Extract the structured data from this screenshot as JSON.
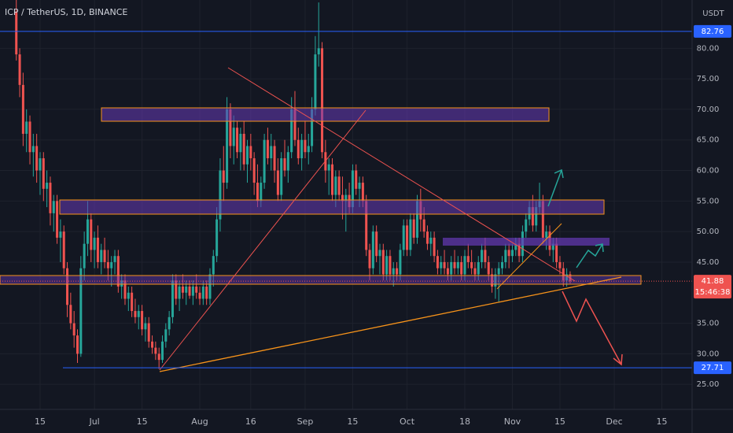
{
  "chart_data": {
    "type": "candlestick",
    "title": "ICP / TetherUS, 1D, BINANCE",
    "currency": "USDT",
    "up_color": "#26a69a",
    "down_color": "#ef5350",
    "grid": true,
    "xlim": [
      154.2,
      357.9
    ],
    "ylim": [
      20.9,
      87.9
    ],
    "xticks": [
      {
        "value": 166,
        "label": "15"
      },
      {
        "value": 182,
        "label": "Jul"
      },
      {
        "value": 196,
        "label": "15"
      },
      {
        "value": 213,
        "label": "Aug"
      },
      {
        "value": 228,
        "label": "16"
      },
      {
        "value": 244,
        "label": "Sep"
      },
      {
        "value": 258,
        "label": "15"
      },
      {
        "value": 274,
        "label": "Oct"
      },
      {
        "value": 291,
        "label": "18"
      },
      {
        "value": 305,
        "label": "Nov"
      },
      {
        "value": 319,
        "label": "15"
      },
      {
        "value": 335,
        "label": "Dec"
      },
      {
        "value": 349,
        "label": "15"
      }
    ],
    "yticks": [
      {
        "value": 25,
        "label": "25.00"
      },
      {
        "value": 30,
        "label": "30.00"
      },
      {
        "value": 35,
        "label": "35.00"
      },
      {
        "value": 45,
        "label": "45.00"
      },
      {
        "value": 50,
        "label": "50.00"
      },
      {
        "value": 55,
        "label": "55.00"
      },
      {
        "value": 60,
        "label": "60.00"
      },
      {
        "value": 65,
        "label": "65.00"
      },
      {
        "value": 70,
        "label": "70.00"
      },
      {
        "value": 75,
        "label": "75.00"
      },
      {
        "value": 80,
        "label": "80.00"
      }
    ],
    "price_lines": [
      {
        "value": 82.76,
        "color": "#2962ff"
      },
      {
        "value": 27.71,
        "color": "#2962ff"
      }
    ],
    "last_price": 41.88,
    "countdown": "15:46:38",
    "x": [
      159,
      160,
      161,
      162,
      163,
      164,
      165,
      166,
      167,
      168,
      169,
      170,
      171,
      172,
      173,
      174,
      175,
      176,
      177,
      178,
      179,
      180,
      181,
      182,
      183,
      184,
      185,
      186,
      187,
      188,
      189,
      190,
      191,
      192,
      193,
      194,
      195,
      196,
      197,
      198,
      199,
      200,
      201,
      202,
      203,
      204,
      205,
      206,
      207,
      208,
      209,
      210,
      211,
      212,
      213,
      214,
      215,
      216,
      217,
      218,
      219,
      220,
      221,
      222,
      223,
      224,
      225,
      226,
      227,
      228,
      229,
      230,
      231,
      232,
      233,
      234,
      235,
      236,
      237,
      238,
      239,
      240,
      241,
      242,
      243,
      244,
      245,
      246,
      247,
      248,
      249,
      250,
      251,
      252,
      253,
      254,
      255,
      256,
      257,
      258,
      259,
      260,
      261,
      262,
      263,
      264,
      265,
      266,
      267,
      268,
      269,
      270,
      271,
      272,
      273,
      274,
      275,
      276,
      277,
      278,
      279,
      280,
      281,
      282,
      283,
      284,
      285,
      286,
      287,
      288,
      289,
      290,
      291,
      292,
      293,
      294,
      295,
      296,
      297,
      298,
      299,
      300,
      301,
      302,
      303,
      304,
      305,
      306,
      307,
      308,
      309,
      310,
      311,
      312,
      313,
      314,
      315,
      316,
      317,
      318,
      319,
      320,
      321,
      322
    ],
    "candles": [
      [
        86,
        88,
        78,
        79
      ],
      [
        79,
        80,
        72,
        74
      ],
      [
        74,
        76,
        64,
        66
      ],
      [
        66,
        70,
        63,
        68
      ],
      [
        68,
        69,
        61,
        63
      ],
      [
        63,
        66,
        59,
        64
      ],
      [
        64,
        66,
        58,
        60
      ],
      [
        60,
        63,
        56,
        62
      ],
      [
        62,
        63,
        55,
        57
      ],
      [
        57,
        60,
        54,
        58
      ],
      [
        58,
        59,
        51,
        53
      ],
      [
        53,
        56,
        50,
        55
      ],
      [
        55,
        56,
        48,
        49
      ],
      [
        49,
        52,
        45,
        50
      ],
      [
        50,
        51,
        43,
        44
      ],
      [
        44,
        45,
        36,
        38
      ],
      [
        38,
        40,
        34,
        35
      ],
      [
        35,
        37,
        31,
        33
      ],
      [
        33,
        34,
        28.5,
        30
      ],
      [
        30,
        46,
        29.5,
        44
      ],
      [
        44,
        50,
        42,
        48
      ],
      [
        48,
        55,
        46,
        52
      ],
      [
        52,
        53,
        45,
        47
      ],
      [
        47,
        50,
        44,
        49
      ],
      [
        49,
        51,
        44,
        45
      ],
      [
        45,
        48,
        43,
        47
      ],
      [
        47,
        49,
        44,
        45
      ],
      [
        45,
        47,
        42,
        44
      ],
      [
        44,
        46,
        41,
        45
      ],
      [
        45,
        47,
        43,
        46
      ],
      [
        46,
        47,
        40,
        41
      ],
      [
        41,
        43,
        39,
        42
      ],
      [
        42,
        43,
        38,
        39
      ],
      [
        39,
        41,
        37,
        40
      ],
      [
        40,
        41,
        36,
        37
      ],
      [
        37,
        39,
        35,
        36
      ],
      [
        36,
        38,
        34,
        37
      ],
      [
        37,
        38,
        33,
        34
      ],
      [
        34,
        36,
        32,
        35
      ],
      [
        35,
        36,
        31,
        32
      ],
      [
        32,
        33,
        30,
        31
      ],
      [
        31,
        32,
        29,
        30
      ],
      [
        30,
        31,
        27.5,
        29
      ],
      [
        29,
        33,
        28.5,
        32
      ],
      [
        32,
        35,
        31,
        34
      ],
      [
        34,
        37,
        33,
        36
      ],
      [
        36,
        43,
        35,
        42
      ],
      [
        42,
        43,
        38,
        39
      ],
      [
        39,
        42,
        37,
        41
      ],
      [
        41,
        43,
        39,
        40
      ],
      [
        40,
        42,
        38,
        41
      ],
      [
        41,
        42,
        39,
        39.5
      ],
      [
        39.5,
        42,
        38,
        41
      ],
      [
        41,
        43,
        39,
        40
      ],
      [
        40,
        41,
        38,
        39
      ],
      [
        39,
        42,
        38,
        41
      ],
      [
        41,
        42,
        38,
        39
      ],
      [
        39,
        44,
        38,
        43
      ],
      [
        43,
        47,
        41,
        46
      ],
      [
        46,
        54,
        45,
        52
      ],
      [
        52,
        62,
        50,
        60
      ],
      [
        60,
        64,
        55,
        58
      ],
      [
        58,
        72,
        57,
        70
      ],
      [
        70,
        71,
        62,
        64
      ],
      [
        64,
        69,
        61,
        67
      ],
      [
        67,
        68,
        62,
        63
      ],
      [
        63,
        67,
        60,
        66
      ],
      [
        66,
        68,
        60,
        61
      ],
      [
        61,
        65,
        58,
        64
      ],
      [
        64,
        66,
        60,
        62
      ],
      [
        62,
        63,
        56,
        58
      ],
      [
        58,
        61,
        54,
        55
      ],
      [
        55,
        59,
        54,
        58
      ],
      [
        58,
        66,
        57,
        65
      ],
      [
        65,
        67,
        61,
        62
      ],
      [
        62,
        66,
        60,
        64
      ],
      [
        64,
        65,
        58,
        60
      ],
      [
        60,
        62,
        55,
        56
      ],
      [
        56,
        63,
        55,
        62
      ],
      [
        62,
        65,
        59,
        60
      ],
      [
        60,
        64,
        58,
        63
      ],
      [
        63,
        72,
        62,
        70
      ],
      [
        70,
        73,
        64,
        65
      ],
      [
        65,
        67,
        61,
        62
      ],
      [
        62,
        66,
        60,
        65
      ],
      [
        65,
        68,
        62,
        63
      ],
      [
        63,
        66,
        61,
        64
      ],
      [
        64,
        72,
        63,
        70
      ],
      [
        70,
        82,
        69,
        79
      ],
      [
        79,
        87.5,
        77,
        80
      ],
      [
        80,
        81,
        62,
        63
      ],
      [
        63,
        65,
        58,
        60
      ],
      [
        60,
        62,
        56,
        61
      ],
      [
        61,
        62,
        55,
        56
      ],
      [
        56,
        60,
        54,
        59
      ],
      [
        59,
        60,
        55,
        56
      ],
      [
        56,
        59,
        52,
        55
      ],
      [
        55,
        57,
        50,
        56
      ],
      [
        56,
        58,
        53,
        54
      ],
      [
        54,
        61,
        53,
        60
      ],
      [
        60,
        61,
        56,
        57
      ],
      [
        57,
        59,
        54,
        58
      ],
      [
        58,
        59,
        54,
        55
      ],
      [
        55,
        56,
        46,
        47
      ],
      [
        47,
        48,
        42,
        44
      ],
      [
        44,
        51,
        43,
        50
      ],
      [
        50,
        51,
        45,
        46
      ],
      [
        46,
        48,
        43,
        47
      ],
      [
        47,
        48,
        42,
        43
      ],
      [
        43,
        47,
        42,
        46
      ],
      [
        46,
        47,
        42,
        43
      ],
      [
        43,
        45,
        41,
        44
      ],
      [
        44,
        45,
        42,
        43
      ],
      [
        43,
        48,
        42,
        47
      ],
      [
        47,
        52,
        46,
        51
      ],
      [
        51,
        52,
        46,
        47
      ],
      [
        47,
        53,
        46,
        52
      ],
      [
        52,
        53,
        48,
        49
      ],
      [
        49,
        56,
        48,
        55
      ],
      [
        55,
        57,
        50,
        52
      ],
      [
        52,
        54,
        49,
        50
      ],
      [
        50,
        51,
        47,
        48
      ],
      [
        48,
        50,
        46,
        49
      ],
      [
        49,
        50,
        45,
        46
      ],
      [
        46,
        47,
        43,
        44
      ],
      [
        44,
        46,
        43,
        45
      ],
      [
        45,
        47,
        43,
        44
      ],
      [
        44,
        45,
        42,
        43
      ],
      [
        43,
        46,
        42,
        45
      ],
      [
        45,
        47,
        43,
        44
      ],
      [
        44,
        46,
        43,
        45
      ],
      [
        45,
        46,
        42,
        43
      ],
      [
        43,
        47,
        42,
        46
      ],
      [
        46,
        48,
        44,
        45
      ],
      [
        45,
        47,
        43,
        44
      ],
      [
        44,
        45,
        42,
        43
      ],
      [
        43,
        46,
        42,
        45
      ],
      [
        45,
        48,
        44,
        47
      ],
      [
        47,
        49,
        44,
        45
      ],
      [
        45,
        46,
        42,
        43
      ],
      [
        43,
        44,
        40,
        41
      ],
      [
        41,
        44,
        39,
        43
      ],
      [
        43,
        45,
        38.5,
        44
      ],
      [
        44,
        46,
        43,
        45
      ],
      [
        45,
        48,
        44,
        47
      ],
      [
        47,
        48,
        44,
        46
      ],
      [
        46,
        48,
        45,
        47
      ],
      [
        47,
        49,
        46,
        48
      ],
      [
        48,
        49,
        45,
        46
      ],
      [
        46,
        51,
        45,
        50
      ],
      [
        50,
        53,
        49,
        52
      ],
      [
        52,
        55,
        51,
        54
      ],
      [
        54,
        56,
        50,
        51
      ],
      [
        51,
        55,
        50,
        54
      ],
      [
        54,
        58,
        53,
        55
      ],
      [
        55,
        56,
        48,
        49
      ],
      [
        49,
        51,
        47,
        50
      ],
      [
        50,
        51,
        46,
        47
      ],
      [
        47,
        49,
        45,
        48
      ],
      [
        48,
        49,
        44,
        45
      ],
      [
        45,
        46,
        43,
        44
      ],
      [
        44,
        45,
        41,
        42
      ],
      [
        42,
        44,
        41,
        43
      ],
      [
        43,
        43.5,
        41.5,
        41.88
      ]
    ]
  }
}
